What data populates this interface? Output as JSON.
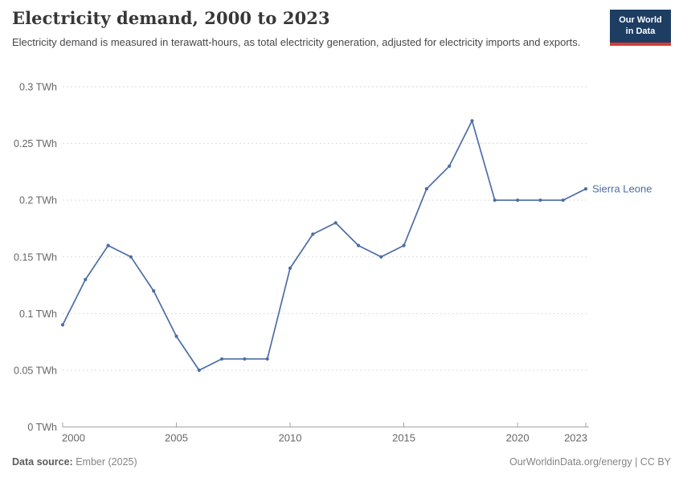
{
  "header": {
    "title": "Electricity demand, 2000 to 2023",
    "subtitle": "Electricity demand is measured in terawatt-hours, as total electricity generation, adjusted for electricity imports and exports."
  },
  "logo": {
    "line1": "Our World",
    "line2": "in Data"
  },
  "footer": {
    "source_label": "Data source:",
    "source_value": " Ember (2025)",
    "license": "OurWorldinData.org/energy | CC BY"
  },
  "colors": {
    "line": "#4c6da5",
    "grid": "#dadada",
    "axis": "#a3a3a3",
    "tick_text": "#666666",
    "logo_bg": "#1d3d63",
    "logo_bar": "#d73c34",
    "title_text": "#383636"
  },
  "chart_data": {
    "type": "line",
    "title": "Electricity demand, 2000 to 2023",
    "xlabel": "",
    "ylabel": "TWh",
    "unit": "TWh",
    "grid": "horizontal-dashed",
    "legend_position": "line-end-label",
    "x": [
      2000,
      2001,
      2002,
      2003,
      2004,
      2005,
      2006,
      2007,
      2008,
      2009,
      2010,
      2011,
      2012,
      2013,
      2014,
      2015,
      2016,
      2017,
      2018,
      2019,
      2020,
      2021,
      2022,
      2023
    ],
    "series": [
      {
        "name": "Sierra Leone",
        "color": "#4c6da5",
        "values": [
          0.09,
          0.13,
          0.16,
          0.15,
          0.12,
          0.08,
          0.05,
          0.06,
          0.06,
          0.06,
          0.14,
          0.17,
          0.18,
          0.16,
          0.15,
          0.16,
          0.21,
          0.23,
          0.27,
          0.2,
          0.2,
          0.2,
          0.2,
          0.21
        ]
      }
    ],
    "xlim": [
      2000,
      2023
    ],
    "ylim": [
      0,
      0.3
    ],
    "xticks": [
      2000,
      2005,
      2010,
      2015,
      2020,
      2023
    ],
    "yticks": [
      {
        "value": 0,
        "label": "0 TWh"
      },
      {
        "value": 0.05,
        "label": "0.05 TWh"
      },
      {
        "value": 0.1,
        "label": "0.1 TWh"
      },
      {
        "value": 0.15,
        "label": "0.15 TWh"
      },
      {
        "value": 0.2,
        "label": "0.2 TWh"
      },
      {
        "value": 0.25,
        "label": "0.25 TWh"
      },
      {
        "value": 0.3,
        "label": "0.3 TWh"
      }
    ]
  }
}
